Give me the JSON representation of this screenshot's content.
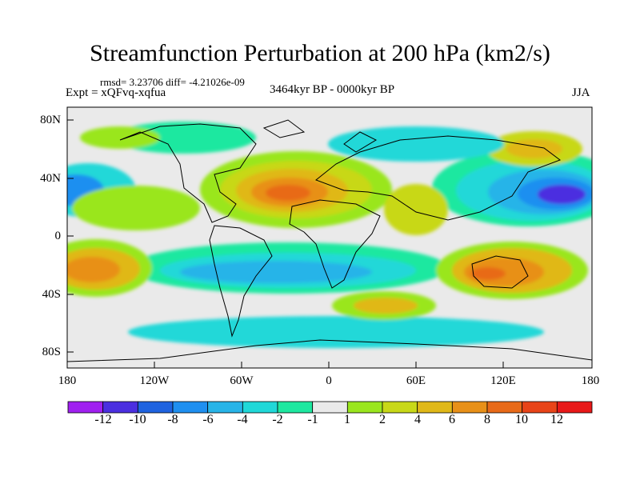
{
  "title": "Streamfunction Perturbation at 200 hPa (km2/s)",
  "stats": "rmsd= 3.23706 diff= -4.21026e-09",
  "experiment": "Expt = xQFvq-xqfua",
  "period": "3464kyr BP - 0000kyr BP",
  "season": "JJA",
  "lat_labels": [
    "80N",
    "40N",
    "0",
    "40S",
    "80S"
  ],
  "lon_labels": [
    "180",
    "120W",
    "60W",
    "0",
    "60E",
    "120E",
    "180"
  ],
  "colorbar": {
    "labels": [
      "-12",
      "-10",
      "-8",
      "-6",
      "-4",
      "-2",
      "-1",
      "1",
      "2",
      "4",
      "6",
      "8",
      "10",
      "12"
    ],
    "colors": [
      "#a020f0",
      "#4b2fe0",
      "#1f63e0",
      "#1f8ff0",
      "#28b4e8",
      "#20d8d8",
      "#1ee8a0",
      "#eaeaea",
      "#9ae61e",
      "#c8d818",
      "#e0b818",
      "#e89018",
      "#e86a18",
      "#e84418",
      "#e81818"
    ]
  },
  "map_data": {
    "type": "filled-contour-map",
    "variable": "streamfunction perturbation",
    "level_hPa": 200,
    "units": "km2/s",
    "lon_range": [
      -180,
      180
    ],
    "lat_range": [
      -90,
      90
    ],
    "features": [
      {
        "name": "N Atlantic / Sahara high",
        "lon": -20,
        "lat": 30,
        "value": 10
      },
      {
        "name": "NW Pacific low",
        "lon": 160,
        "lat": 28,
        "value": -10
      },
      {
        "name": "E Pacific low",
        "lon": -178,
        "lat": 30,
        "value": -6
      },
      {
        "name": "Australian high",
        "lon": 125,
        "lat": -25,
        "value": 10
      },
      {
        "name": "S Pacific high",
        "lon": -150,
        "lat": -22,
        "value": 8
      },
      {
        "name": "S Atlantic low",
        "lon": -30,
        "lat": -20,
        "value": -6
      },
      {
        "name": "S Indian Ocean high",
        "lon": 40,
        "lat": -48,
        "value": 6
      },
      {
        "name": "Southern Ocean low",
        "lon": -20,
        "lat": -60,
        "value": -4
      },
      {
        "name": "N Pacific high",
        "lon": 140,
        "lat": 62,
        "value": 4
      },
      {
        "name": "N Eurasia low",
        "lon": 60,
        "lat": 65,
        "value": -2
      }
    ]
  }
}
